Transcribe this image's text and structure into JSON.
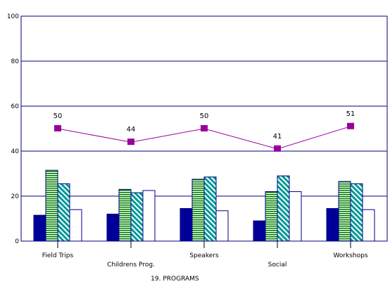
{
  "chart_data": {
    "type": "bar",
    "xlabel": "19. PROGRAMS",
    "categories": [
      "Field Trips",
      "Childrens Prog.",
      "Speakers",
      "Social",
      "Workshops"
    ],
    "ylim": [
      0,
      100
    ],
    "yticks": [
      0,
      20,
      40,
      60,
      80,
      100
    ],
    "grid": true,
    "series": [
      {
        "values": [
          11.5,
          12,
          14.5,
          9,
          14.5
        ],
        "color": "#000099",
        "pattern": "solid"
      },
      {
        "values": [
          31.5,
          23,
          27.5,
          22,
          26.5
        ],
        "color": "#008000",
        "pattern": "horizontal-stripes"
      },
      {
        "values": [
          25.5,
          21.5,
          28.5,
          29,
          25.5
        ],
        "color": "#009999",
        "pattern": "diagonal-stripes"
      },
      {
        "values": [
          14,
          22.5,
          13.5,
          22,
          14
        ],
        "color": "#ffffff",
        "pattern": "hollow"
      }
    ],
    "line": {
      "values": [
        50,
        44,
        50,
        41,
        51
      ],
      "labels": [
        "50",
        "44",
        "50",
        "41",
        "51"
      ],
      "color": "#990099"
    }
  }
}
